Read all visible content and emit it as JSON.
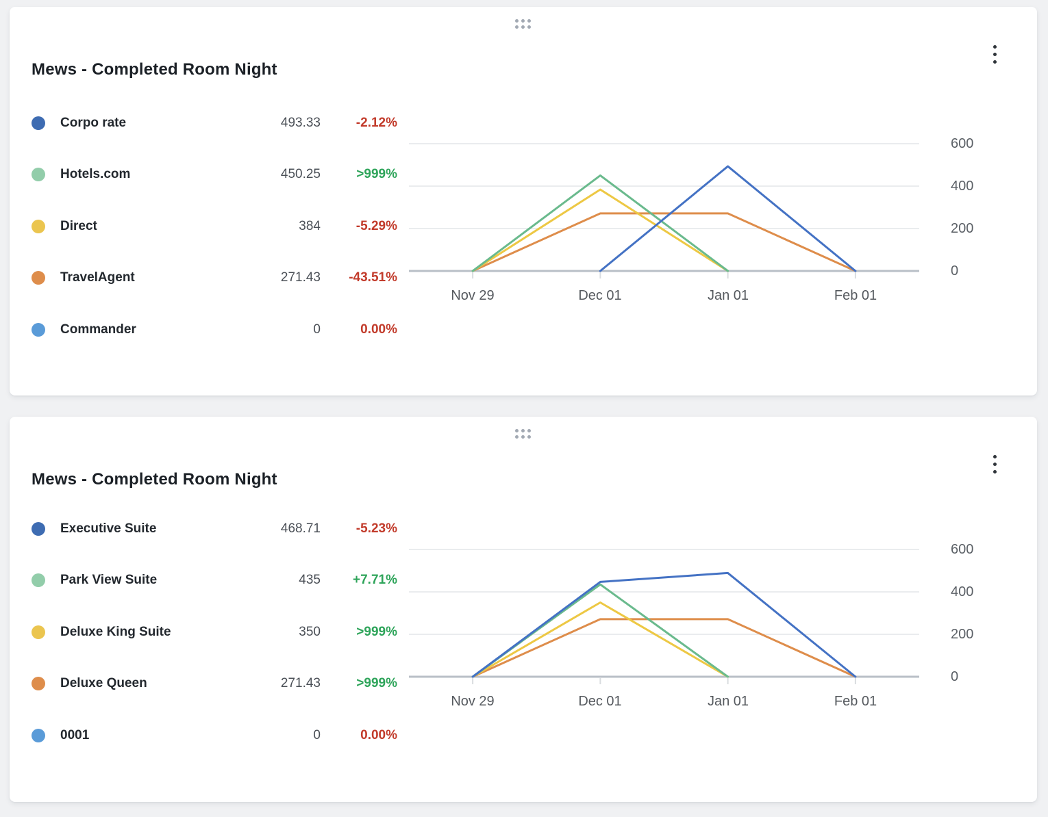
{
  "page": {
    "background": "#F0F1F3"
  },
  "colors": {
    "positive_change": "#2EA45A",
    "negative_change": "#C23B2B",
    "gridline": "#E4E6E9",
    "baseline": "#B9BFC7",
    "tick": "#D9DCDF",
    "axis_text": "#5B6066"
  },
  "cards": [
    {
      "title": "Mews - Completed Room Night",
      "legend": [
        {
          "label": "Corpo rate",
          "value": "493.33",
          "change": "-2.12%",
          "dot_color": "#3E6CB2"
        },
        {
          "label": "Hotels.com",
          "value": "450.25",
          "change": ">999%",
          "dot_color": "#92CDAA"
        },
        {
          "label": "Direct",
          "value": "384",
          "change": "-5.29%",
          "dot_color": "#EBC54F"
        },
        {
          "label": "TravelAgent",
          "value": "271.43",
          "change": "-43.51%",
          "dot_color": "#DE8D4B"
        },
        {
          "label": "Commander",
          "value": "0",
          "change": "0.00%",
          "dot_color": "#5A9BD8"
        }
      ]
    },
    {
      "title": "Mews - Completed Room Night",
      "legend": [
        {
          "label": "Executive Suite",
          "value": "468.71",
          "change": "-5.23%",
          "dot_color": "#3E6CB2"
        },
        {
          "label": "Park View Suite",
          "value": "435",
          "change": "+7.71%",
          "dot_color": "#92CDAA"
        },
        {
          "label": "Deluxe King Suite",
          "value": "350",
          "change": ">999%",
          "dot_color": "#EBC54F"
        },
        {
          "label": "Deluxe Queen",
          "value": "271.43",
          "change": ">999%",
          "dot_color": "#DE8D4B"
        },
        {
          "label": "0001",
          "value": "0",
          "change": "0.00%",
          "dot_color": "#5A9BD8"
        }
      ]
    }
  ],
  "chart_data": [
    {
      "type": "line",
      "title": "Mews - Completed Room Night",
      "categories": [
        "Nov 29",
        "Dec 01",
        "Jan 01",
        "Feb 01"
      ],
      "series": [
        {
          "name": "Corpo rate",
          "color": "#4472C4",
          "values": [
            null,
            0,
            493.33,
            0
          ]
        },
        {
          "name": "Hotels.com",
          "color": "#6ABA8D",
          "values": [
            0,
            450.25,
            0,
            null
          ]
        },
        {
          "name": "Direct",
          "color": "#EDC844",
          "values": [
            0,
            384,
            0,
            null
          ]
        },
        {
          "name": "TravelAgent",
          "color": "#DE8D4B",
          "values": [
            0,
            271.43,
            271.43,
            0
          ]
        },
        {
          "name": "Commander",
          "color": "#5A9BD8",
          "values": [
            null,
            null,
            null,
            null
          ]
        }
      ],
      "yticks": [
        0,
        200,
        400,
        600
      ],
      "ylim": [
        0,
        660
      ],
      "grid": "horizontal",
      "y_axis_position": "right",
      "legend_position": "left"
    },
    {
      "type": "line",
      "title": "Mews - Completed Room Night",
      "categories": [
        "Nov 29",
        "Dec 01",
        "Jan 01",
        "Feb 01"
      ],
      "series": [
        {
          "name": "Executive Suite",
          "color": "#4472C4",
          "values": [
            0,
            447,
            489,
            0
          ]
        },
        {
          "name": "Park View Suite",
          "color": "#6ABA8D",
          "values": [
            0,
            435,
            0,
            null
          ]
        },
        {
          "name": "Deluxe King Suite",
          "color": "#EDC844",
          "values": [
            0,
            350,
            0,
            null
          ]
        },
        {
          "name": "Deluxe Queen",
          "color": "#DE8D4B",
          "values": [
            0,
            271.43,
            271.43,
            0
          ]
        },
        {
          "name": "0001",
          "color": "#5A9BD8",
          "values": [
            null,
            null,
            null,
            null
          ]
        }
      ],
      "yticks": [
        0,
        200,
        400,
        600
      ],
      "ylim": [
        0,
        660
      ],
      "grid": "horizontal",
      "y_axis_position": "right",
      "legend_position": "left"
    }
  ]
}
